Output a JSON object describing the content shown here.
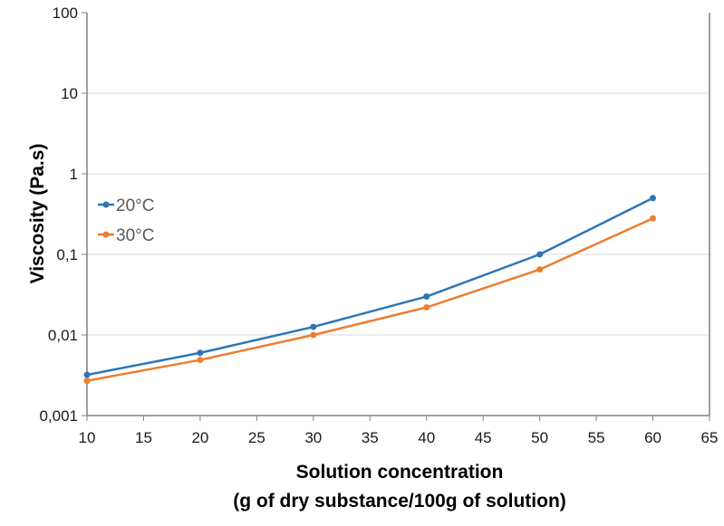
{
  "chart_data": {
    "type": "line",
    "title": "",
    "xlabel": "Solution concentration",
    "xlabel_line2": "(g of dry substance/100g of solution)",
    "ylabel": "Viscosity (Pa.s)",
    "yscale": "log",
    "xlim": [
      10,
      65
    ],
    "ylim": [
      0.001,
      100
    ],
    "x_ticks": [
      "10",
      "15",
      "20",
      "25",
      "30",
      "35",
      "40",
      "45",
      "50",
      "55",
      "60",
      "65"
    ],
    "y_ticks": [
      "100",
      "10",
      "1",
      "0,1",
      "0,01",
      "0,001"
    ],
    "grid": "horizontal",
    "legend_position": "left-inside",
    "x": [
      10,
      20,
      30,
      40,
      50,
      60
    ],
    "series": [
      {
        "name": "20°C",
        "color": "#2e75b6",
        "values": [
          0.0032,
          0.006,
          0.0126,
          0.03,
          0.1,
          0.5
        ]
      },
      {
        "name": "30°C",
        "color": "#ed7d31",
        "values": [
          0.0027,
          0.0049,
          0.01,
          0.022,
          0.065,
          0.28
        ]
      }
    ]
  }
}
